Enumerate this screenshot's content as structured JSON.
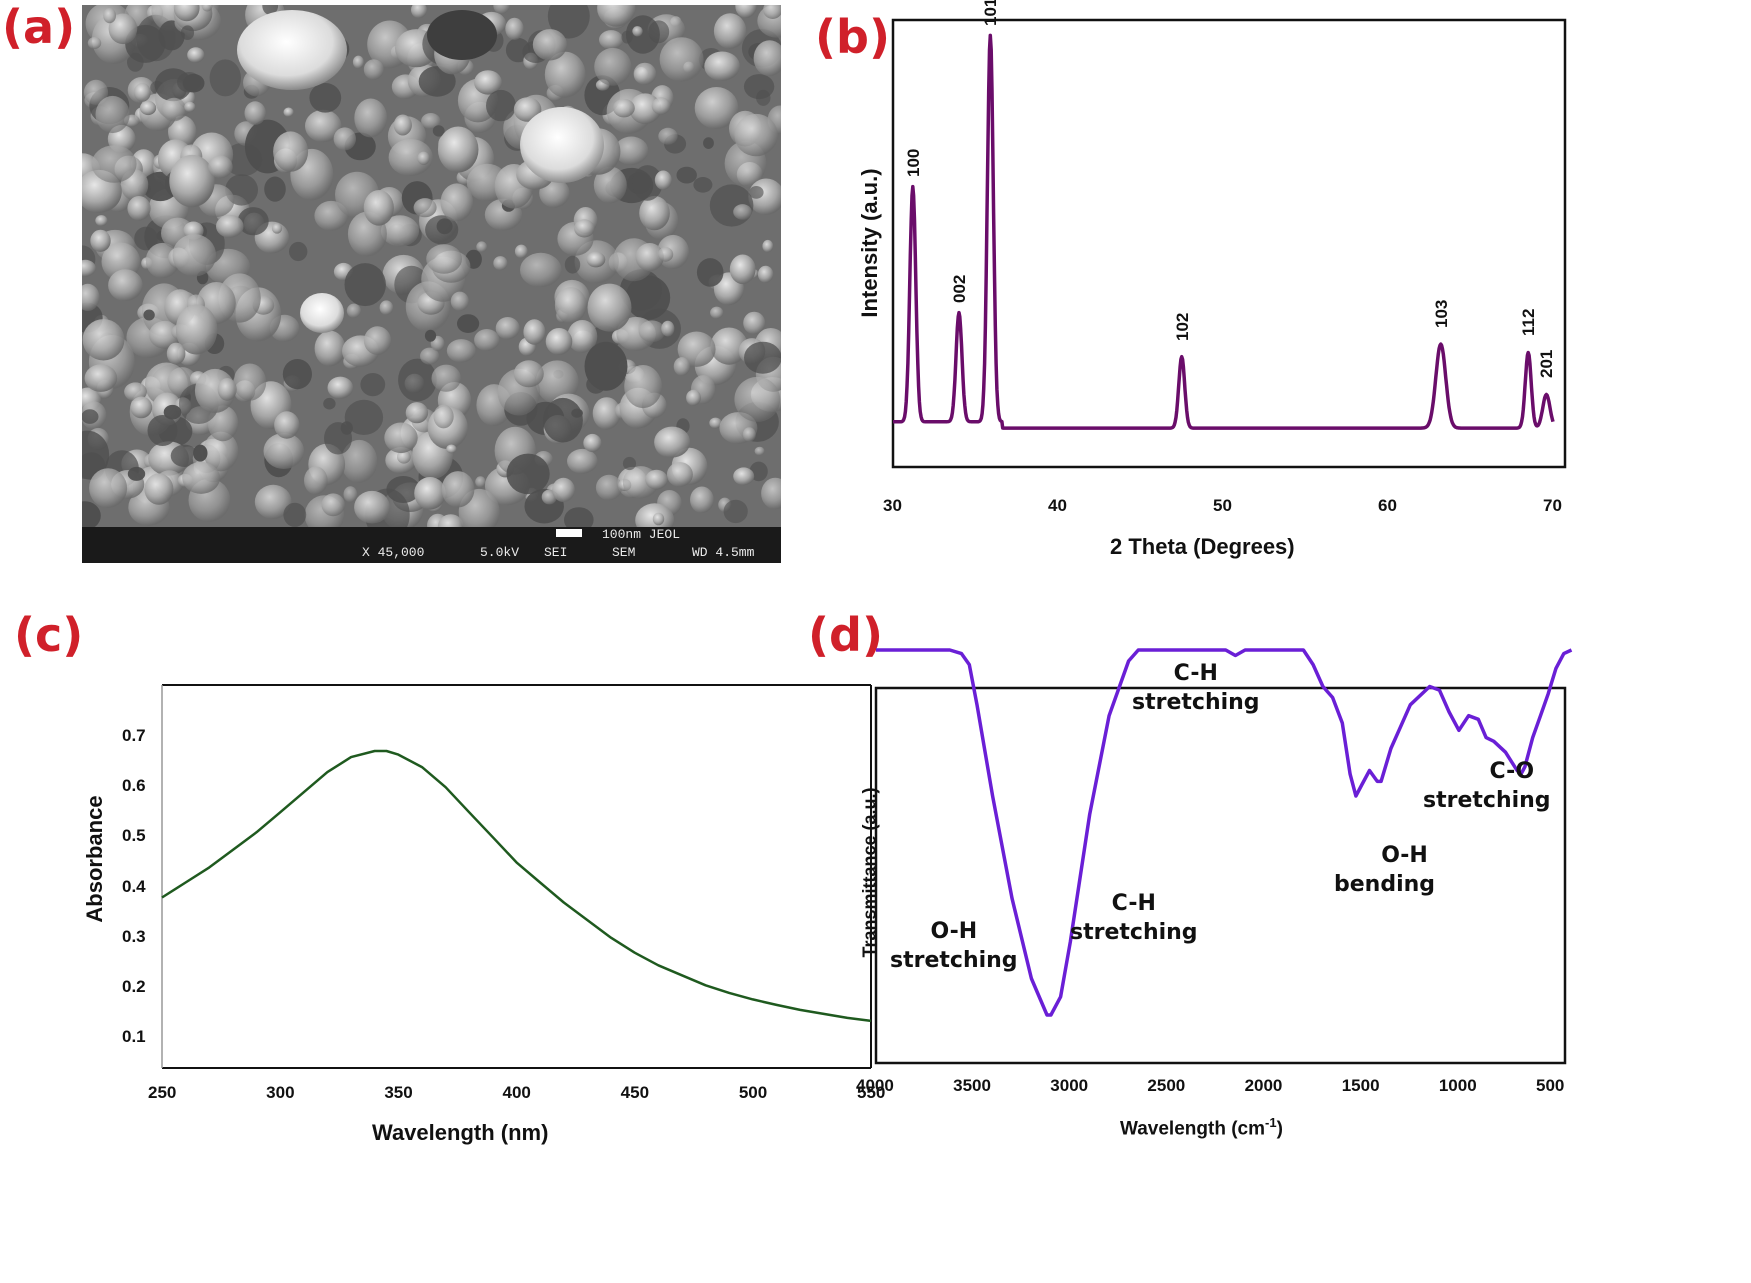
{
  "panels": {
    "a": {
      "label": "(a)",
      "sem_info": {
        "scale_text": "100nm JEOL",
        "magnification": "X 45,000",
        "voltage": "5.0kV",
        "detector": "SEI",
        "mode": "SEM",
        "working_distance": "WD 4.5mm"
      }
    },
    "b": {
      "label": "(b)"
    },
    "c": {
      "label": "(c)"
    },
    "d": {
      "label": "(d)"
    }
  },
  "chart_data": [
    {
      "id": "b",
      "type": "line",
      "title": "",
      "xlabel": "2 Theta (Degrees)",
      "ylabel": "Intensity (a.u.)",
      "xlim": [
        30,
        70
      ],
      "xticks": [
        "30",
        "40",
        "50",
        "60",
        "70"
      ],
      "yticks": [],
      "line_color": "#6a0d6a",
      "grid": false,
      "peaks": [
        {
          "hkl": "100",
          "x": 31.2,
          "height": 0.56
        },
        {
          "hkl": "002",
          "x": 34.0,
          "height": 0.26
        },
        {
          "hkl": "101",
          "x": 35.9,
          "height": 0.92
        },
        {
          "hkl": "102",
          "x": 47.5,
          "height": 0.17
        },
        {
          "hkl": "103",
          "x": 63.2,
          "height": 0.2
        },
        {
          "hkl": "112",
          "x": 68.5,
          "height": 0.18
        },
        {
          "hkl": "201",
          "x": 69.6,
          "height": 0.08
        }
      ],
      "baseline": 0.05
    },
    {
      "id": "c",
      "type": "line",
      "title": "",
      "xlabel": "Wavelength (nm)",
      "ylabel": "Absorbance",
      "xlim": [
        250,
        550
      ],
      "ylim": [
        0.05,
        0.75
      ],
      "xticks": [
        "250",
        "300",
        "350",
        "400",
        "450",
        "500",
        "550"
      ],
      "yticks": [
        "0.1",
        "0.2",
        "0.3",
        "0.4",
        "0.5",
        "0.6",
        "0.7"
      ],
      "line_color": "#1f5a1f",
      "grid": false,
      "x": [
        250,
        260,
        270,
        280,
        290,
        300,
        310,
        320,
        330,
        340,
        345,
        350,
        360,
        370,
        380,
        390,
        400,
        410,
        420,
        430,
        440,
        450,
        460,
        470,
        480,
        490,
        500,
        510,
        520,
        530,
        540,
        550
      ],
      "y": [
        0.38,
        0.41,
        0.44,
        0.475,
        0.51,
        0.55,
        0.59,
        0.63,
        0.66,
        0.672,
        0.672,
        0.665,
        0.64,
        0.6,
        0.55,
        0.5,
        0.45,
        0.41,
        0.37,
        0.335,
        0.3,
        0.27,
        0.245,
        0.225,
        0.205,
        0.19,
        0.177,
        0.166,
        0.156,
        0.148,
        0.14,
        0.134
      ]
    },
    {
      "id": "d",
      "type": "line",
      "title": "",
      "xlabel": "Wavelength (cm",
      "xlabel_sup": "-1",
      "xlabel_tail": ")",
      "ylabel": "Transmittance (a.u.)",
      "xlim": [
        4000,
        400
      ],
      "xticks": [
        "4000",
        "3500",
        "3000",
        "2500",
        "2000",
        "1500",
        "1000",
        "500"
      ],
      "yticks": [],
      "line_color": "#6a1fd6",
      "grid": false,
      "x": [
        4000,
        3620,
        3560,
        3520,
        3480,
        3400,
        3300,
        3200,
        3120,
        3100,
        3050,
        3000,
        2900,
        2800,
        2700,
        2650,
        2600,
        2400,
        2200,
        2150,
        2100,
        1800,
        1750,
        1700,
        1650,
        1600,
        1560,
        1530,
        1500,
        1460,
        1420,
        1400,
        1350,
        1250,
        1150,
        1100,
        1050,
        1000,
        950,
        900,
        860,
        820,
        760,
        700,
        680,
        660,
        620,
        580,
        540,
        500,
        460,
        420
      ],
      "y": [
        1.0,
        1.0,
        0.99,
        0.96,
        0.85,
        0.6,
        0.32,
        0.1,
        0.0,
        0.0,
        0.05,
        0.2,
        0.55,
        0.82,
        0.97,
        1.0,
        1.0,
        1.0,
        1.0,
        0.985,
        1.0,
        1.0,
        0.96,
        0.9,
        0.87,
        0.8,
        0.66,
        0.6,
        0.63,
        0.67,
        0.64,
        0.64,
        0.73,
        0.85,
        0.9,
        0.89,
        0.83,
        0.78,
        0.82,
        0.81,
        0.76,
        0.75,
        0.72,
        0.67,
        0.66,
        0.68,
        0.76,
        0.82,
        0.88,
        0.95,
        0.99,
        1.0
      ],
      "annotations": [
        {
          "line1": "O-H",
          "line2": "stretching"
        },
        {
          "line1": "C-H",
          "line2": "stretching"
        },
        {
          "line1": "C-H",
          "line2": "stretching"
        },
        {
          "line1": "O-H",
          "line2": "bending"
        },
        {
          "line1": "C-O",
          "line2": "stretching"
        }
      ]
    }
  ]
}
